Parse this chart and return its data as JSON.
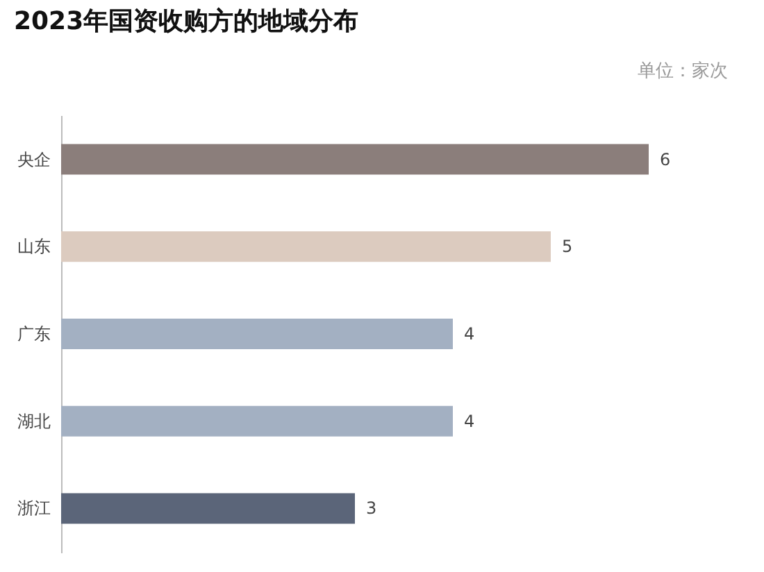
{
  "chart_data": {
    "type": "bar",
    "orientation": "horizontal",
    "title": "2023年国资收购方的地域分布",
    "annotations": [
      "单位：家次"
    ],
    "categories": [
      "央企",
      "山东",
      "广东",
      "湖北",
      "浙江"
    ],
    "values": [
      6,
      5,
      4,
      4,
      3
    ],
    "colors": [
      "#8b7e7b",
      "#dccbbf",
      "#a3b0c2",
      "#a3b0c2",
      "#5b6579"
    ],
    "data_labels": true
  }
}
